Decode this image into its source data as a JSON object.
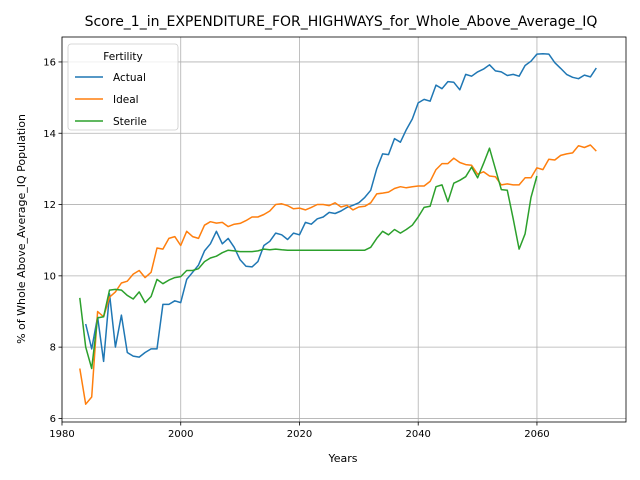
{
  "chart_data": {
    "type": "line",
    "title": "Score_1_in_EXPENDITURE_FOR_HIGHWAYS_for_Whole_Above_Average_IQ",
    "xlabel": "Years",
    "ylabel": "% of Whole Above_Average_IQ Population",
    "xlim": [
      1980,
      2075
    ],
    "ylim": [
      5.9,
      16.7
    ],
    "xticks": [
      1980,
      2000,
      2020,
      2040,
      2060
    ],
    "yticks": [
      6,
      8,
      10,
      12,
      14,
      16
    ],
    "grid": true,
    "legend": {
      "title": "Fertility",
      "position": "top-left"
    },
    "series": [
      {
        "name": "Actual",
        "color": "#1f77b4",
        "x": [
          1984,
          1985,
          1986,
          1987,
          1988,
          1989,
          1990,
          1991,
          1992,
          1993,
          1994,
          1995,
          1996,
          1997,
          1998,
          1999,
          2000,
          2001,
          2002,
          2003,
          2004,
          2005,
          2006,
          2007,
          2008,
          2009,
          2010,
          2011,
          2012,
          2013,
          2014,
          2015,
          2016,
          2017,
          2018,
          2019,
          2020,
          2021,
          2022,
          2023,
          2024,
          2025,
          2026,
          2027,
          2028,
          2029,
          2030,
          2031,
          2032,
          2033,
          2034,
          2035,
          2036,
          2037,
          2038,
          2039,
          2040,
          2041,
          2042,
          2043,
          2044,
          2045,
          2046,
          2047,
          2048,
          2049,
          2050,
          2051,
          2052,
          2053,
          2054,
          2055,
          2056,
          2057,
          2058,
          2059,
          2060,
          2061,
          2062,
          2063,
          2064,
          2065,
          2066,
          2067,
          2068,
          2069,
          2070
        ],
        "values": [
          8.65,
          7.95,
          8.85,
          7.6,
          9.5,
          8.0,
          8.9,
          7.85,
          7.75,
          7.72,
          7.85,
          7.95,
          7.95,
          9.2,
          9.2,
          9.3,
          9.25,
          9.9,
          10.1,
          10.3,
          10.7,
          10.9,
          11.25,
          10.9,
          11.05,
          10.8,
          10.45,
          10.27,
          10.25,
          10.4,
          10.85,
          10.97,
          11.2,
          11.15,
          11.02,
          11.2,
          11.15,
          11.5,
          11.45,
          11.6,
          11.65,
          11.78,
          11.75,
          11.82,
          11.92,
          11.98,
          12.05,
          12.2,
          12.4,
          13.0,
          13.42,
          13.4,
          13.85,
          13.75,
          14.1,
          14.4,
          14.85,
          14.95,
          14.9,
          15.35,
          15.25,
          15.45,
          15.43,
          15.22,
          15.65,
          15.6,
          15.72,
          15.8,
          15.92,
          15.75,
          15.72,
          15.62,
          15.65,
          15.6,
          15.9,
          16.02,
          16.22,
          16.23,
          16.22,
          15.98,
          15.82,
          15.65,
          15.57,
          15.53,
          15.63,
          15.58,
          15.83
        ]
      },
      {
        "name": "Ideal",
        "color": "#ff7f0e",
        "x": [
          1983,
          1984,
          1985,
          1986,
          1987,
          1988,
          1989,
          1990,
          1991,
          1992,
          1993,
          1994,
          1995,
          1996,
          1997,
          1998,
          1999,
          2000,
          2001,
          2002,
          2003,
          2004,
          2005,
          2006,
          2007,
          2008,
          2009,
          2010,
          2011,
          2012,
          2013,
          2014,
          2015,
          2016,
          2017,
          2018,
          2019,
          2020,
          2021,
          2022,
          2023,
          2024,
          2025,
          2026,
          2027,
          2028,
          2029,
          2030,
          2031,
          2032,
          2033,
          2034,
          2035,
          2036,
          2037,
          2038,
          2039,
          2040,
          2041,
          2042,
          2043,
          2044,
          2045,
          2046,
          2047,
          2048,
          2049,
          2050,
          2051,
          2052,
          2053,
          2054,
          2055,
          2056,
          2057,
          2058,
          2059,
          2060,
          2061,
          2062,
          2063,
          2064,
          2065,
          2066,
          2067,
          2068,
          2069,
          2070
        ],
        "values": [
          7.4,
          6.4,
          6.6,
          9.0,
          8.85,
          9.4,
          9.55,
          9.8,
          9.85,
          10.05,
          10.15,
          9.95,
          10.1,
          10.78,
          10.75,
          11.05,
          11.1,
          10.85,
          11.25,
          11.1,
          11.05,
          11.42,
          11.52,
          11.48,
          11.5,
          11.38,
          11.45,
          11.47,
          11.55,
          11.65,
          11.65,
          11.72,
          11.82,
          12.0,
          12.02,
          11.97,
          11.88,
          11.9,
          11.85,
          11.92,
          12.0,
          12.0,
          11.97,
          12.05,
          11.93,
          11.98,
          11.85,
          11.93,
          11.95,
          12.05,
          12.3,
          12.32,
          12.35,
          12.45,
          12.5,
          12.47,
          12.5,
          12.52,
          12.52,
          12.65,
          12.98,
          13.15,
          13.15,
          13.3,
          13.18,
          13.12,
          13.1,
          12.85,
          12.92,
          12.8,
          12.78,
          12.55,
          12.58,
          12.55,
          12.55,
          12.75,
          12.75,
          13.03,
          12.98,
          13.27,
          13.25,
          13.38,
          13.42,
          13.45,
          13.65,
          13.6,
          13.67,
          13.5
        ]
      },
      {
        "name": "Sterile",
        "color": "#2ca02c",
        "x": [
          1983,
          1984,
          1985,
          1986,
          1987,
          1988,
          1989,
          1990,
          1991,
          1992,
          1993,
          1994,
          1995,
          1996,
          1997,
          1998,
          1999,
          2000,
          2001,
          2002,
          2003,
          2004,
          2005,
          2006,
          2007,
          2008,
          2009,
          2010,
          2011,
          2012,
          2013,
          2014,
          2015,
          2016,
          2017,
          2018,
          2019,
          2020,
          2021,
          2022,
          2023,
          2024,
          2025,
          2026,
          2027,
          2028,
          2029,
          2030,
          2031,
          2032,
          2033,
          2034,
          2035,
          2036,
          2037,
          2038,
          2039,
          2040,
          2041,
          2042,
          2043,
          2044,
          2045,
          2046,
          2047,
          2048,
          2049,
          2050,
          2051,
          2052,
          2053,
          2054,
          2055,
          2056,
          2057,
          2058,
          2059,
          2060
        ],
        "values": [
          9.38,
          8.0,
          7.4,
          8.82,
          8.85,
          9.6,
          9.62,
          9.6,
          9.45,
          9.35,
          9.55,
          9.25,
          9.42,
          9.9,
          9.78,
          9.88,
          9.95,
          9.98,
          10.15,
          10.15,
          10.2,
          10.4,
          10.5,
          10.55,
          10.65,
          10.72,
          10.7,
          10.68,
          10.68,
          10.68,
          10.7,
          10.75,
          10.73,
          10.75,
          10.73,
          10.72,
          10.72,
          10.72,
          10.72,
          10.72,
          10.72,
          10.72,
          10.72,
          10.72,
          10.72,
          10.72,
          10.72,
          10.72,
          10.72,
          10.8,
          11.05,
          11.25,
          11.15,
          11.3,
          11.2,
          11.3,
          11.42,
          11.65,
          11.92,
          11.95,
          12.5,
          12.55,
          12.08,
          12.6,
          12.68,
          12.78,
          13.05,
          12.75,
          13.15,
          13.58,
          13.0,
          12.42,
          12.4,
          11.6,
          10.75,
          11.18,
          12.2,
          12.8
        ]
      }
    ]
  }
}
